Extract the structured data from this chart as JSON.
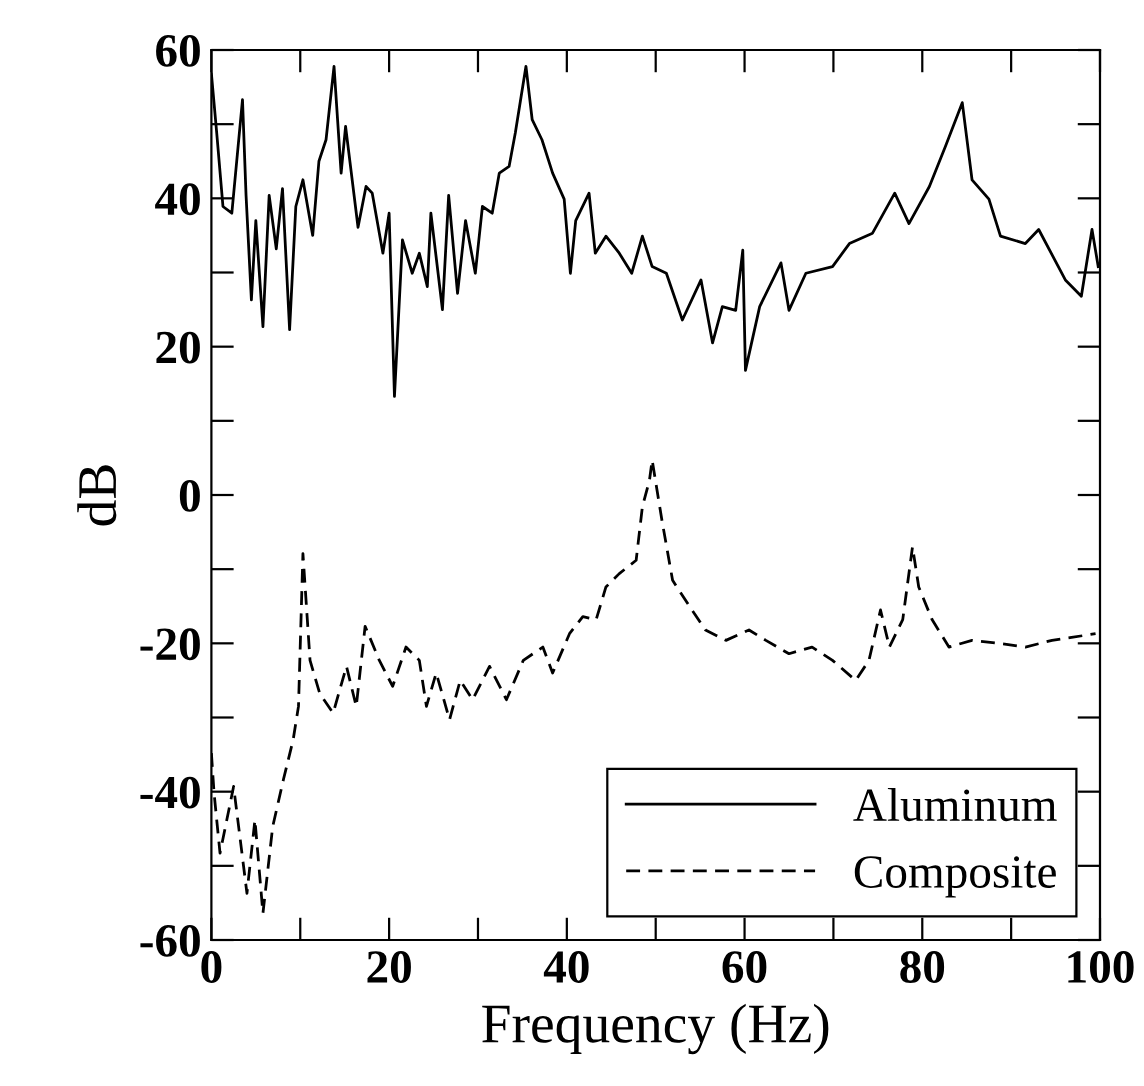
{
  "chart_data": {
    "type": "line",
    "xlabel": "Frequency (Hz)",
    "ylabel": "dB",
    "xlim": [
      0,
      100
    ],
    "ylim": [
      -60,
      60
    ],
    "xticks": [
      0,
      {
        "value": 10,
        "label": null
      },
      20,
      {
        "value": 30,
        "label": null
      },
      40,
      {
        "value": 50,
        "label": null
      },
      60,
      {
        "value": 70,
        "label": null
      },
      80,
      {
        "value": 90,
        "label": null
      },
      100
    ],
    "yticks": [
      -60,
      {
        "value": -50,
        "label": null
      },
      -40,
      {
        "value": -30,
        "label": null
      },
      -20,
      {
        "value": -10,
        "label": null
      },
      0,
      {
        "value": 10,
        "label": null
      },
      20,
      {
        "value": 30,
        "label": null
      },
      40,
      {
        "value": 50,
        "label": null
      },
      60
    ],
    "legend": "bottom right",
    "grid": false,
    "series": [
      {
        "name": "Aluminum",
        "color": "#000000",
        "line_style": "solid",
        "x": [
          0,
          0.6,
          1.3,
          2.3,
          3.5,
          3.9,
          4.5,
          5.0,
          5.8,
          6.5,
          7.3,
          8.0,
          8.8,
          9.5,
          10.3,
          11.4,
          12.1,
          12.9,
          13.8,
          14.6,
          15.1,
          16.5,
          17.4,
          18.1,
          19.3,
          20,
          20.6,
          21.5,
          22.6,
          23.4,
          24.3,
          24.7,
          26,
          26.7,
          27.7,
          28.6,
          29.7,
          30.5,
          31.6,
          32.4,
          33.5,
          34.2,
          35.4,
          36.1,
          37.2,
          38.4,
          39.7,
          40.4,
          41,
          42.5,
          43.2,
          44.4,
          45.9,
          47.3,
          48.5,
          49.6,
          51.2,
          53.0,
          55.1,
          56.4,
          57.5,
          59.0,
          59.8,
          60.1,
          61.7,
          64.1,
          65.0,
          66.9,
          69.9,
          71.8,
          74.4,
          76.9,
          78.5,
          80.8,
          82.6,
          84.5,
          85.6,
          87.5,
          88.8,
          91.6,
          93.1,
          96.1,
          97.9,
          99.1,
          99.8
        ],
        "values": [
          56.8,
          48.8,
          38.9,
          38,
          53.3,
          40.4,
          26.3,
          37,
          22.7,
          40.4,
          33.2,
          41.3,
          22.3,
          38.9,
          42.5,
          35,
          45,
          47.9,
          57.8,
          43.4,
          49.7,
          36.1,
          41.6,
          40.7,
          32.6,
          38,
          13.3,
          34.4,
          29.9,
          32.6,
          28.1,
          38,
          25,
          40.4,
          27.2,
          37,
          29.9,
          38.9,
          38,
          43.4,
          44.3,
          48.8,
          57.8,
          50.6,
          47.9,
          43.4,
          39.9,
          29.9,
          37,
          40.7,
          32.6,
          34.9,
          32.6,
          29.9,
          34.9,
          30.8,
          29.9,
          23.6,
          29,
          20.5,
          25.4,
          24.9,
          33,
          16.8,
          25.4,
          31.3,
          24.9,
          29.9,
          30.8,
          33.9,
          35.3,
          40.7,
          36.6,
          41.6,
          47,
          52.9,
          42.5,
          39.9,
          34.9,
          33.9,
          35.8,
          29,
          26.8,
          35.8,
          30.8
        ]
      },
      {
        "name": "Composite",
        "color": "#000000",
        "line_style": "dashed",
        "x": [
          0,
          0.3,
          0.97,
          2.5,
          4.0,
          4.9,
          5.8,
          6.9,
          8.1,
          9.2,
          9.8,
          10.3,
          11.1,
          12.2,
          13.7,
          15.2,
          16.3,
          17.3,
          18.9,
          20.4,
          21.9,
          23.4,
          24.2,
          25.3,
          26.8,
          28,
          29.4,
          31.3,
          33.2,
          35.1,
          37.3,
          38.4,
          40.3,
          41.8,
          43.3,
          44.4,
          45.9,
          47.8,
          48.5,
          49.3,
          49.6,
          50.7,
          51.9,
          53.8,
          55.6,
          57.9,
          60.5,
          62.4,
          65.0,
          67.6,
          69.9,
          72.5,
          74,
          75.3,
          76.3,
          77.8,
          78.9,
          79.6,
          81.1,
          83,
          85.6,
          88.6,
          91.6,
          94.6,
          96.8,
          99.5
        ],
        "values": [
          -34.8,
          -40.2,
          -48.3,
          -39.3,
          -53.7,
          -43.8,
          -56.4,
          -44.7,
          -38.4,
          -33,
          -28.5,
          -7.9,
          -22.3,
          -26.8,
          -29.4,
          -23.1,
          -28.5,
          -17.7,
          -22.3,
          -25.8,
          -20.5,
          -22.3,
          -28.5,
          -24,
          -30.3,
          -25,
          -27.6,
          -23.1,
          -27.6,
          -22.3,
          -20.5,
          -24,
          -18.7,
          -16.4,
          -16.8,
          -12.4,
          -10.6,
          -8.8,
          -1.6,
          2,
          4.7,
          -3.4,
          -11.5,
          -15,
          -18.2,
          -19.6,
          -18.2,
          -19.6,
          -21.4,
          -20.5,
          -22.3,
          -25,
          -22.3,
          -15.5,
          -20.5,
          -16.8,
          -7,
          -12.4,
          -16.8,
          -20.5,
          -19.6,
          -20,
          -20.5,
          -19.6,
          -19.2,
          -18.7
        ]
      }
    ]
  }
}
